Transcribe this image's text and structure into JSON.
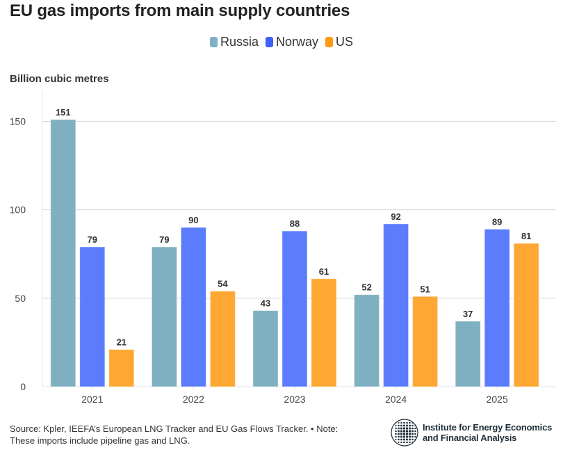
{
  "chart_data": {
    "type": "bar",
    "title": "EU gas imports from main supply countries",
    "ylabel": "Billion cubic metres",
    "xlabel": "",
    "categories": [
      "2021",
      "2022",
      "2023",
      "2024",
      "2025"
    ],
    "series": [
      {
        "name": "Russia",
        "color": "#7fb0c1",
        "values": [
          151,
          79,
          43,
          52,
          37
        ]
      },
      {
        "name": "Norway",
        "color": "#5b7cfd",
        "values": [
          79,
          90,
          88,
          92,
          89
        ]
      },
      {
        "name": "US",
        "color": "#fea733",
        "values": [
          21,
          54,
          61,
          51,
          81
        ]
      }
    ],
    "ylim": [
      0,
      160
    ],
    "yticks": [
      "0",
      "50",
      "100",
      "150"
    ],
    "grid": true,
    "legend_position": "top-center",
    "data_labels": true
  },
  "footer": {
    "source_line1": "Source: Kpler, IEEFA’s European LNG Tracker and EU Gas Flows Tracker. • Note:",
    "source_line2": "These imports include pipeline gas and LNG."
  },
  "logo": {
    "line1": "Institute for Energy Economics",
    "line2": "and Financial Analysis",
    "icon": "globe-icon"
  }
}
